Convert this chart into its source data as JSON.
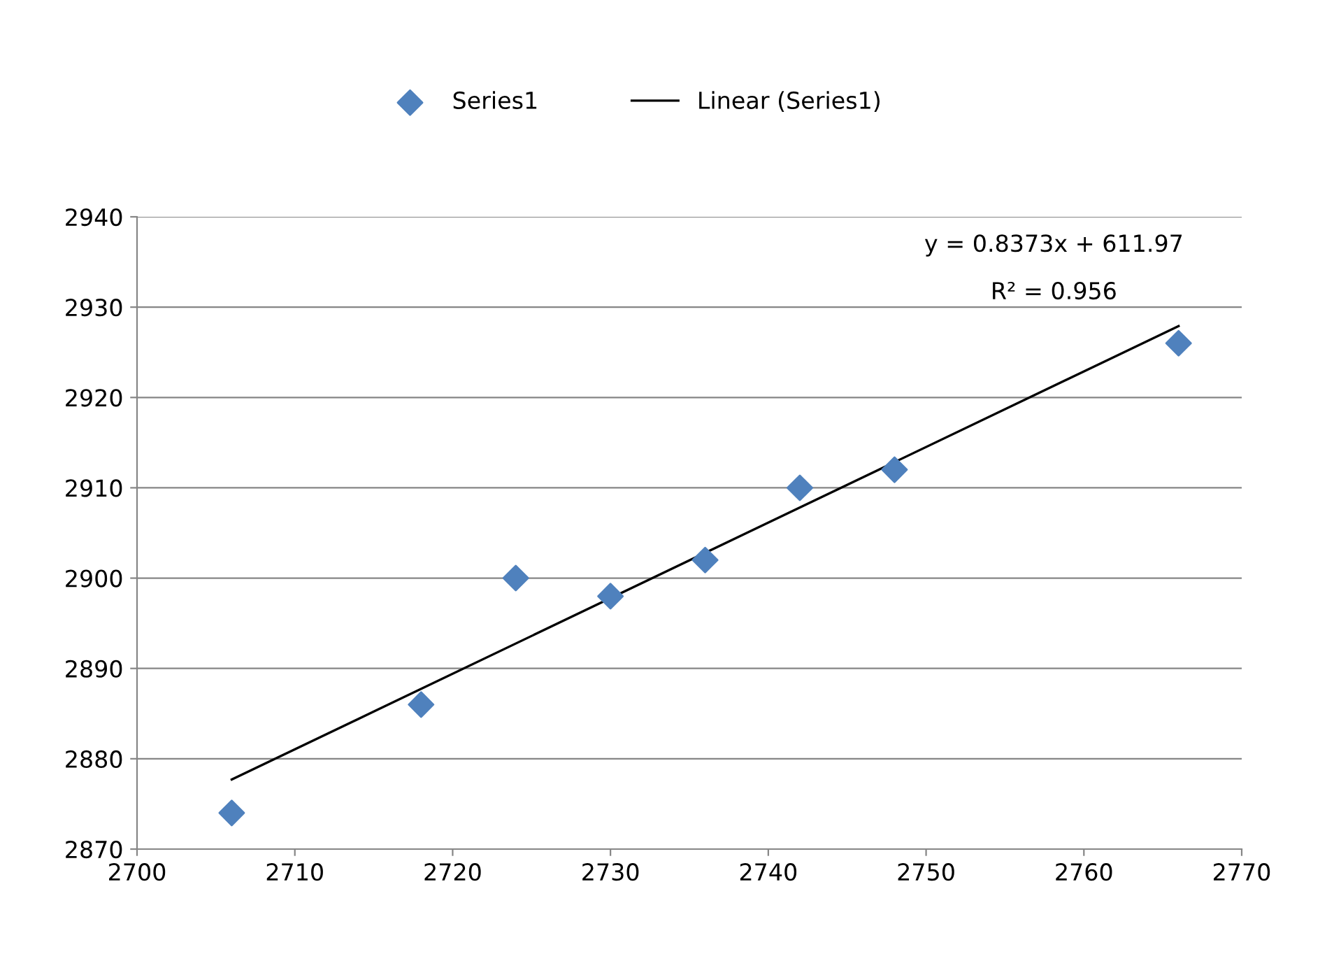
{
  "chart_data": {
    "type": "scatter",
    "series": [
      {
        "name": "Series1",
        "color": "#4f81bd",
        "marker": "diamond",
        "x": [
          2706,
          2718,
          2724,
          2730,
          2736,
          2742,
          2748,
          2766
        ],
        "values": [
          2874,
          2886,
          2900,
          2898,
          2902,
          2910,
          2912,
          2926
        ]
      },
      {
        "name": "Linear (Series1)",
        "type": "line",
        "color": "#000000",
        "marker": "none",
        "line_style": "solid",
        "x": [
          2706,
          2766
        ],
        "values": [
          2877.7,
          2927.9
        ]
      }
    ],
    "xlim": [
      2700,
      2770
    ],
    "xticks": [
      2700,
      2710,
      2720,
      2730,
      2740,
      2750,
      2760,
      2770
    ],
    "ylim": [
      2870,
      2940
    ],
    "yticks": [
      2870,
      2880,
      2890,
      2900,
      2910,
      2920,
      2930,
      2940
    ],
    "grid": "y",
    "legend": "top",
    "annotations": [
      "y = 0.8373x + 611.97",
      "R² = 0.956"
    ]
  }
}
